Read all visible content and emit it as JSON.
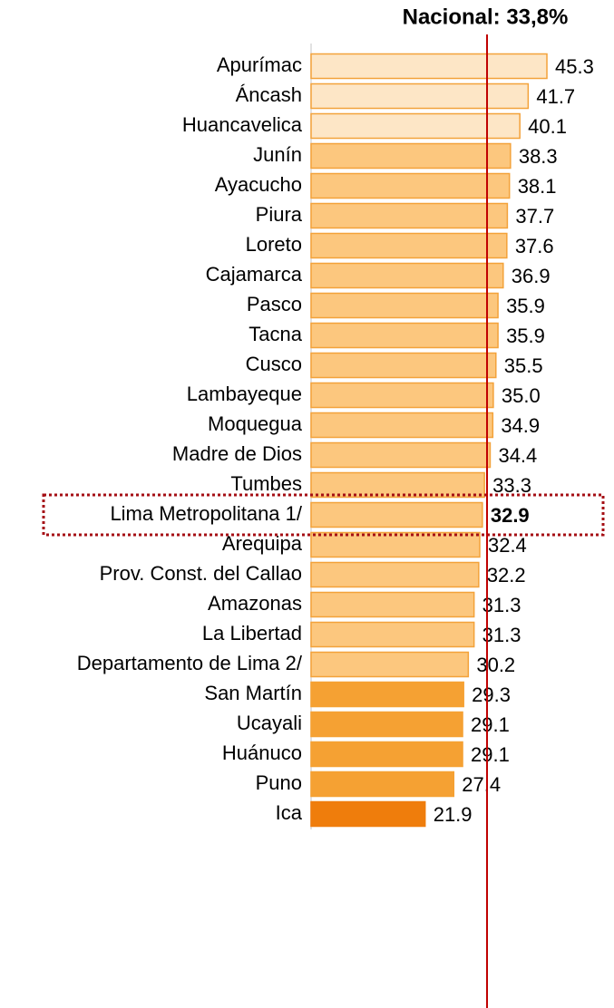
{
  "chart_data": {
    "type": "bar",
    "orientation": "horizontal",
    "categories": [
      "Apurímac",
      "Áncash",
      "Huancavelica",
      "Junín",
      "Ayacucho",
      "Piura",
      "Loreto",
      "Cajamarca",
      "Pasco",
      "Tacna",
      "Cusco",
      "Lambayeque",
      "Moquegua",
      "Madre de Dios",
      "Tumbes",
      "Lima Metropolitana 1/",
      "Arequipa",
      "Prov. Const. del Callao",
      "Amazonas",
      "La Libertad",
      "Departamento de Lima 2/",
      "San Martín",
      "Ucayali",
      "Huánuco",
      "Puno",
      "Ica"
    ],
    "values": [
      45.3,
      41.7,
      40.1,
      38.3,
      38.1,
      37.7,
      37.6,
      36.9,
      35.9,
      35.9,
      35.5,
      35.0,
      34.9,
      34.4,
      33.3,
      32.9,
      32.4,
      32.2,
      31.3,
      31.3,
      30.2,
      29.3,
      29.1,
      29.1,
      27.4,
      21.9
    ],
    "value_labels": [
      "45.3",
      "41.7",
      "40.1",
      "38.3",
      "38.1",
      "37.7",
      "37.6",
      "36.9",
      "35.9",
      "35.9",
      "35.5",
      "35.0",
      "34.9",
      "34.4",
      "33.3",
      "32.9",
      "32.4",
      "32.2",
      "31.3",
      "31.3",
      "30.2",
      "29.3",
      "29.1",
      "29.1",
      "27.4",
      "21.9"
    ],
    "colors": [
      "#fde6c6",
      "#fde6c6",
      "#fde6c6",
      "#fcc77e",
      "#fcc77e",
      "#fcc77e",
      "#fcc77e",
      "#fcc77e",
      "#fcc77e",
      "#fcc77e",
      "#fcc77e",
      "#fcc77e",
      "#fcc77e",
      "#fcc77e",
      "#fcc77e",
      "#fcc77e",
      "#fcc77e",
      "#fcc77e",
      "#fcc77e",
      "#fcc77e",
      "#fcc77e",
      "#f5a133",
      "#f5a133",
      "#f5a133",
      "#f5a133",
      "#ef7d0c"
    ],
    "highlight_index": 15,
    "reference": {
      "label": "Nacional: 33,8%",
      "value": 33.8,
      "color": "#c00000"
    }
  }
}
